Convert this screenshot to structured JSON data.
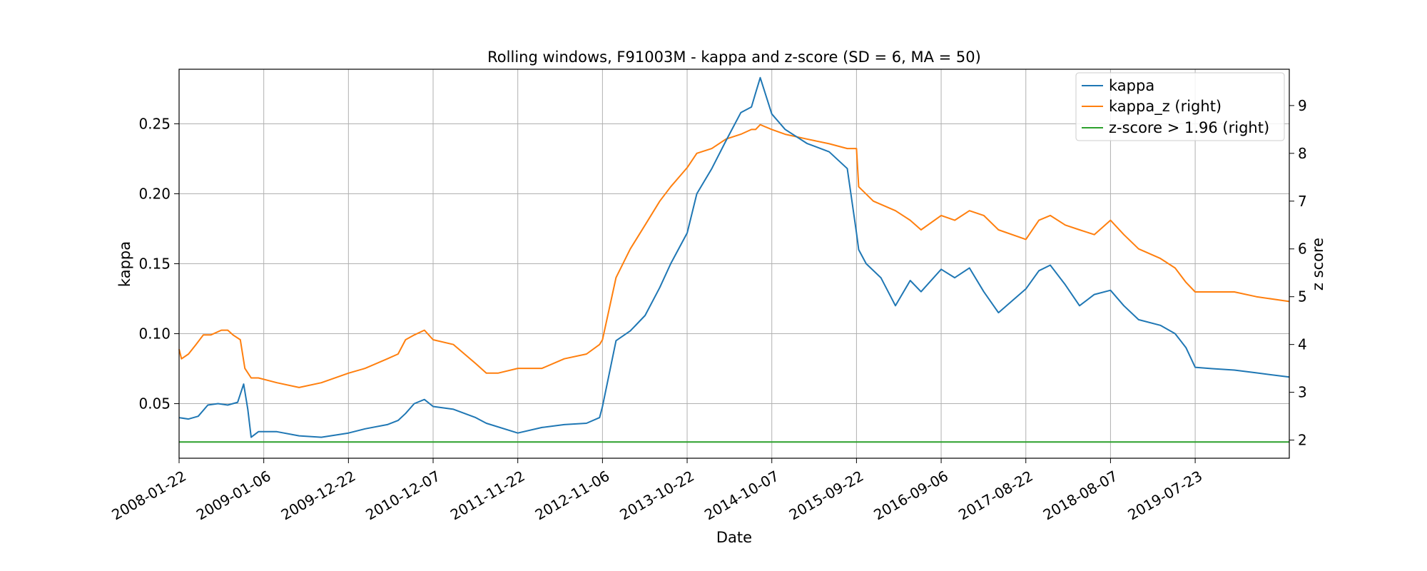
{
  "chart_data": {
    "type": "line",
    "title": "Rolling windows, F91003M - kappa and z-score (SD = 6, MA = 50)",
    "xlabel": "Date",
    "ylabel": "kappa",
    "ylabel_right": "z score",
    "x_ticks": [
      "2008-01-22",
      "2009-01-06",
      "2009-12-22",
      "2010-12-07",
      "2011-11-22",
      "2012-11-06",
      "2013-10-22",
      "2014-10-07",
      "2015-09-22",
      "2016-09-06",
      "2017-08-22",
      "2018-08-07",
      "2019-07-23"
    ],
    "x_range": [
      "2008-01-22",
      "2020-08-15"
    ],
    "y_ticks_left": [
      "0.05",
      "0.10",
      "0.15",
      "0.20",
      "0.25"
    ],
    "y_ticks_right": [
      "2",
      "3",
      "4",
      "5",
      "6",
      "7",
      "8",
      "9"
    ],
    "ylim_left": [
      0.011,
      0.289
    ],
    "ylim_right": [
      1.62,
      9.76
    ],
    "grid": true,
    "legend_position": "top-right",
    "colors": {
      "kappa": "#1f77b4",
      "kappa_z": "#ff7f0e",
      "threshold": "#2ca02c"
    },
    "series": [
      {
        "name": "kappa",
        "axis": "left",
        "x": [
          "2008-01-22",
          "2008-03-01",
          "2008-04-10",
          "2008-05-20",
          "2008-07-01",
          "2008-08-10",
          "2008-09-20",
          "2008-10-15",
          "2008-11-01",
          "2008-11-15",
          "2008-12-15",
          "2009-03-01",
          "2009-06-01",
          "2009-09-01",
          "2009-12-22",
          "2010-03-01",
          "2010-06-01",
          "2010-07-15",
          "2010-08-15",
          "2010-09-20",
          "2010-11-01",
          "2010-12-07",
          "2011-03-01",
          "2011-06-01",
          "2011-07-15",
          "2011-11-22",
          "2012-03-01",
          "2012-06-01",
          "2012-09-01",
          "2012-10-25",
          "2012-11-06",
          "2013-01-01",
          "2013-03-01",
          "2013-05-01",
          "2013-07-01",
          "2013-08-15",
          "2013-10-22",
          "2013-12-01",
          "2014-02-01",
          "2014-04-01",
          "2014-06-01",
          "2014-07-15",
          "2014-08-01",
          "2014-08-20",
          "2014-10-07",
          "2014-12-01",
          "2015-03-01",
          "2015-06-01",
          "2015-08-15",
          "2015-09-22",
          "2015-10-01",
          "2015-11-01",
          "2016-01-01",
          "2016-03-01",
          "2016-05-01",
          "2016-06-15",
          "2016-09-06",
          "2016-11-01",
          "2017-01-01",
          "2017-03-01",
          "2017-05-01",
          "2017-08-22",
          "2017-10-15",
          "2017-12-01",
          "2018-02-01",
          "2018-04-01",
          "2018-06-01",
          "2018-08-07",
          "2018-10-01",
          "2018-12-01",
          "2019-03-01",
          "2019-05-01",
          "2019-06-15",
          "2019-07-23",
          "2019-10-01",
          "2020-01-01",
          "2020-04-01",
          "2020-08-15"
        ],
        "y": [
          0.04,
          0.039,
          0.041,
          0.049,
          0.05,
          0.049,
          0.051,
          0.064,
          0.046,
          0.026,
          0.03,
          0.03,
          0.027,
          0.026,
          0.029,
          0.032,
          0.035,
          0.038,
          0.043,
          0.05,
          0.053,
          0.048,
          0.046,
          0.04,
          0.036,
          0.029,
          0.033,
          0.035,
          0.036,
          0.04,
          0.048,
          0.095,
          0.102,
          0.113,
          0.133,
          0.15,
          0.172,
          0.2,
          0.218,
          0.238,
          0.258,
          0.262,
          0.272,
          0.283,
          0.257,
          0.246,
          0.236,
          0.23,
          0.218,
          0.172,
          0.16,
          0.15,
          0.14,
          0.12,
          0.138,
          0.13,
          0.146,
          0.14,
          0.147,
          0.13,
          0.115,
          0.132,
          0.145,
          0.149,
          0.135,
          0.12,
          0.128,
          0.131,
          0.12,
          0.11,
          0.106,
          0.1,
          0.09,
          0.076,
          0.075,
          0.074,
          0.072,
          0.069
        ]
      },
      {
        "name": "kappa_z (right)",
        "axis": "right",
        "x": [
          "2008-01-22",
          "2008-02-01",
          "2008-03-01",
          "2008-04-01",
          "2008-05-01",
          "2008-06-01",
          "2008-07-15",
          "2008-08-10",
          "2008-09-01",
          "2008-10-01",
          "2008-10-20",
          "2008-11-15",
          "2008-12-15",
          "2009-03-01",
          "2009-06-01",
          "2009-09-01",
          "2009-12-22",
          "2010-03-01",
          "2010-06-01",
          "2010-07-15",
          "2010-08-15",
          "2010-09-20",
          "2010-11-01",
          "2010-12-07",
          "2011-03-01",
          "2011-06-01",
          "2011-07-15",
          "2011-09-01",
          "2011-11-22",
          "2012-03-01",
          "2012-06-01",
          "2012-09-01",
          "2012-10-25",
          "2012-11-06",
          "2013-01-01",
          "2013-03-01",
          "2013-05-01",
          "2013-07-01",
          "2013-08-15",
          "2013-10-22",
          "2013-12-01",
          "2014-02-01",
          "2014-04-01",
          "2014-06-01",
          "2014-07-15",
          "2014-08-01",
          "2014-08-20",
          "2014-10-07",
          "2014-12-01",
          "2015-03-01",
          "2015-06-01",
          "2015-08-15",
          "2015-09-22",
          "2015-10-01",
          "2015-12-01",
          "2016-03-01",
          "2016-05-01",
          "2016-06-15",
          "2016-09-06",
          "2016-11-01",
          "2017-01-01",
          "2017-03-01",
          "2017-05-01",
          "2017-08-22",
          "2017-10-15",
          "2017-12-01",
          "2018-02-01",
          "2018-04-01",
          "2018-06-01",
          "2018-08-07",
          "2018-10-01",
          "2018-12-01",
          "2019-03-01",
          "2019-05-01",
          "2019-06-15",
          "2019-07-23",
          "2019-10-01",
          "2020-01-01",
          "2020-04-01",
          "2020-08-15"
        ],
        "y": [
          3.9,
          3.7,
          3.8,
          4.0,
          4.2,
          4.2,
          4.3,
          4.3,
          4.2,
          4.1,
          3.5,
          3.3,
          3.3,
          3.2,
          3.1,
          3.2,
          3.4,
          3.5,
          3.7,
          3.8,
          4.1,
          4.2,
          4.3,
          4.1,
          4.0,
          3.6,
          3.4,
          3.4,
          3.5,
          3.5,
          3.7,
          3.8,
          4.0,
          4.1,
          5.4,
          6.0,
          6.5,
          7.0,
          7.3,
          7.7,
          8.0,
          8.1,
          8.3,
          8.4,
          8.5,
          8.5,
          8.6,
          8.5,
          8.4,
          8.3,
          8.2,
          8.1,
          8.1,
          7.3,
          7.0,
          6.8,
          6.6,
          6.4,
          6.7,
          6.6,
          6.8,
          6.7,
          6.4,
          6.2,
          6.6,
          6.7,
          6.5,
          6.4,
          6.3,
          6.6,
          6.3,
          6.0,
          5.8,
          5.6,
          5.3,
          5.1,
          5.1,
          5.1,
          5.0,
          4.9
        ]
      },
      {
        "name": "z-score > 1.96 (right)",
        "axis": "right",
        "x": [
          "2008-01-22",
          "2020-08-15"
        ],
        "y": [
          1.96,
          1.96
        ]
      }
    ]
  }
}
